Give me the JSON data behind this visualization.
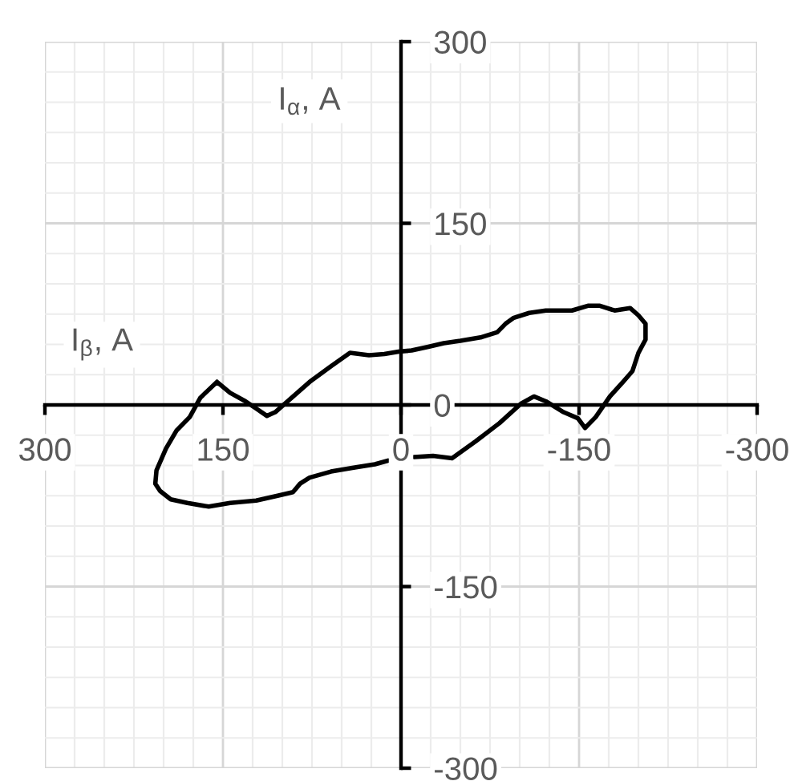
{
  "chart_data": {
    "type": "line",
    "xlabel": "I$_{β}$, A",
    "ylabel": "I$_{α}$, A",
    "x": [
      155,
      169,
      178,
      189,
      198,
      206,
      207,
      203,
      194,
      180,
      162,
      144,
      122,
      104,
      91,
      85,
      77,
      59,
      41,
      22,
      11,
      -2,
      -11,
      -27,
      -43,
      -63,
      -83,
      -101,
      -112,
      -122,
      -137,
      -149,
      -155,
      -164,
      -176,
      -187,
      -195,
      -200,
      -206,
      -206,
      -200,
      -193,
      -180,
      -167,
      -158,
      -144,
      -122,
      -108,
      -95,
      -88,
      -81,
      -68,
      -50,
      -36,
      -23,
      -9,
      2,
      14,
      27,
      43,
      59,
      77,
      92,
      106,
      113,
      122,
      131,
      144,
      155
    ],
    "values": [
      19,
      6,
      -10,
      -21,
      -36,
      -54,
      -65,
      -71,
      -78,
      -81,
      -84,
      -81,
      -79,
      -75,
      -72,
      -65,
      -60,
      -55,
      -52,
      -49,
      -46,
      null,
      -43,
      -42,
      -44,
      -30,
      -15,
      1,
      7,
      3,
      -6,
      -11,
      -19,
      -10,
      7,
      19,
      28,
      43,
      54,
      67,
      74,
      80,
      78,
      82,
      82,
      78,
      78,
      76,
      72,
      67,
      60,
      56,
      53,
      51,
      48,
      45,
      44,
      42,
      41,
      43,
      32,
      19,
      6,
      -6,
      -9,
      -3,
      3,
      10,
      19
    ],
    "color": "#000000",
    "xlim": [
      300,
      -300
    ],
    "ylim": [
      -300,
      300
    ],
    "xticks": [
      300,
      150,
      0,
      -150,
      -300
    ],
    "yticks": [
      300,
      150,
      0,
      -150,
      -300
    ],
    "grid": true
  }
}
